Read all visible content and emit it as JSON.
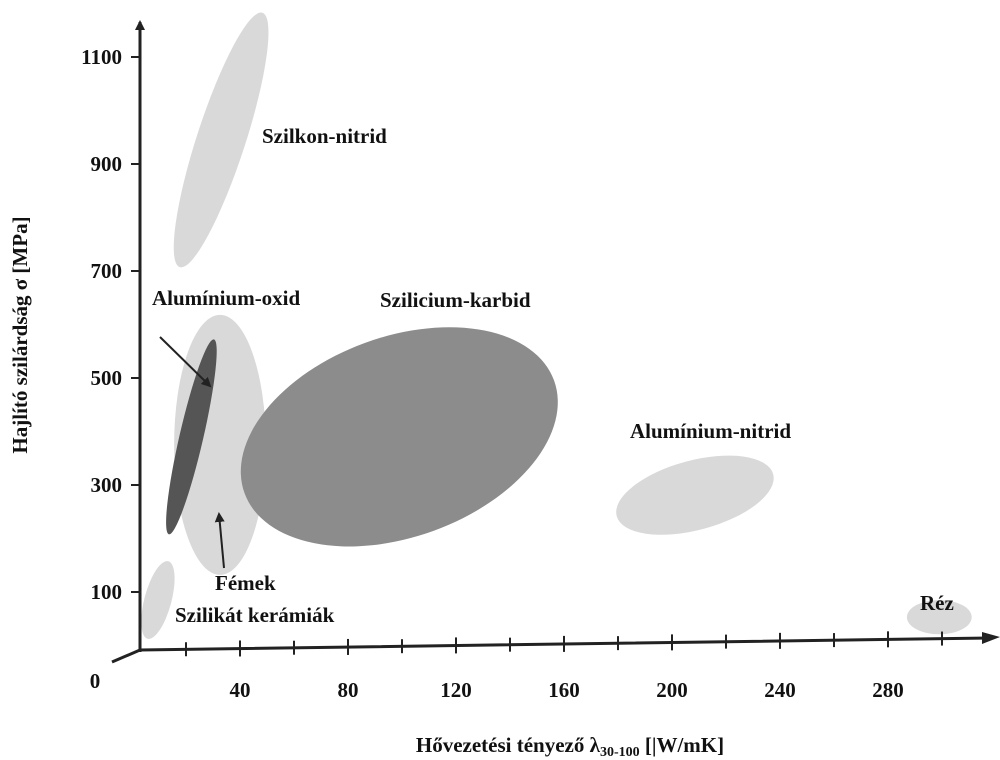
{
  "chart_data": {
    "type": "ellipse",
    "x_label": {
      "text": "Hővezetési tényező λ",
      "subscript": "30-100",
      "unit": " [|W/mK]"
    },
    "y_label": "Hajlító szilárdság σ [MPa]",
    "xlim": [
      0,
      320
    ],
    "ylim": [
      0,
      1200
    ],
    "xticks": [
      0,
      40,
      80,
      120,
      160,
      200,
      240,
      280
    ],
    "xminor_ticks": [
      20,
      60,
      100,
      140,
      180,
      220,
      260,
      300
    ],
    "yticks": [
      100,
      300,
      500,
      700,
      900,
      1100
    ],
    "regions": [
      {
        "name": "Szilkon-nitrid",
        "color": "#d9d9d9",
        "cx": 33,
        "cy": 945,
        "rx": 9,
        "ry": 250,
        "angle": 18
      },
      {
        "name": "Fémek",
        "color": "#d9d9d9",
        "cx": 32.6,
        "cy": 375,
        "rx": 17,
        "ry": 243,
        "angle": 0
      },
      {
        "name": "Alumínium-oxid",
        "color": "#555555",
        "cx": 22,
        "cy": 390,
        "rx": 4.4,
        "ry": 187,
        "angle": 13
      },
      {
        "name": "Szilicium-karbid",
        "color": "#8c8c8c",
        "cx": 99,
        "cy": 390,
        "rx": 61,
        "ry": 187,
        "angle": -20
      },
      {
        "name": "Alumínium-nitrid",
        "color": "#d9d9d9",
        "cx": 208.5,
        "cy": 281,
        "rx": 30,
        "ry": 65,
        "angle": -15
      },
      {
        "name": "Réz",
        "color": "#d9d9d9",
        "cx": 299,
        "cy": 53,
        "rx": 12,
        "ry": 32,
        "angle": 0
      },
      {
        "name": "Szilikát kerámiák",
        "color": "#d9d9d9",
        "cx": 9.6,
        "cy": 85,
        "rx": 5,
        "ry": 75,
        "angle": 15
      }
    ]
  }
}
